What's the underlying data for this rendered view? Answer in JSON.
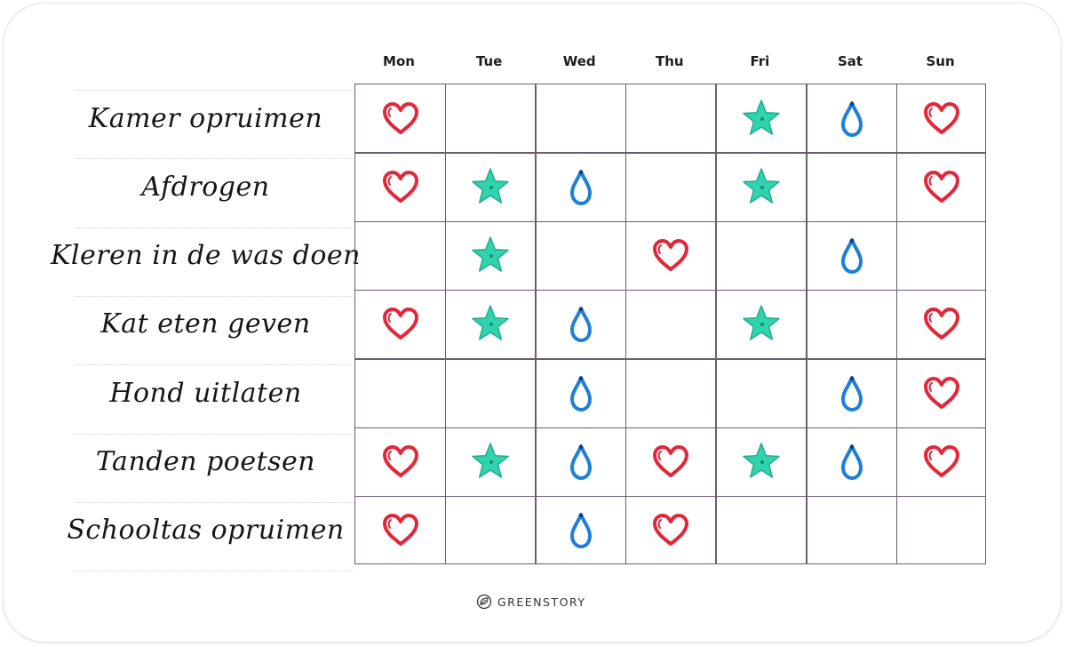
{
  "days": [
    "Mon",
    "Tue",
    "Wed",
    "Thu",
    "Fri",
    "Sat",
    "Sun"
  ],
  "tasks": [
    "Kamer opruimen",
    "Afdrogen",
    "Kleren in de was doen",
    "Kat eten geven",
    "Hond uitlaten",
    "Tanden poetsen",
    "Schooltas opruimen"
  ],
  "marks": [
    [
      "heart",
      "",
      "",
      "",
      "star",
      "drop",
      "heart"
    ],
    [
      "heart",
      "star",
      "drop",
      "",
      "star",
      "",
      "heart"
    ],
    [
      "",
      "star",
      "",
      "heart",
      "",
      "drop",
      ""
    ],
    [
      "heart",
      "star",
      "drop",
      "",
      "star",
      "",
      "heart"
    ],
    [
      "",
      "",
      "drop",
      "",
      "",
      "drop",
      "heart"
    ],
    [
      "heart",
      "star",
      "drop",
      "heart",
      "star",
      "drop",
      "heart"
    ],
    [
      "heart",
      "",
      "drop",
      "heart",
      "",
      "",
      ""
    ]
  ],
  "colors": {
    "heart": "#e3273a",
    "star": "#2fd3ad",
    "drop": "#1f7fd6"
  },
  "brand": {
    "logo_icon": "leaf-circle-icon",
    "name": "GREENSTORY"
  }
}
